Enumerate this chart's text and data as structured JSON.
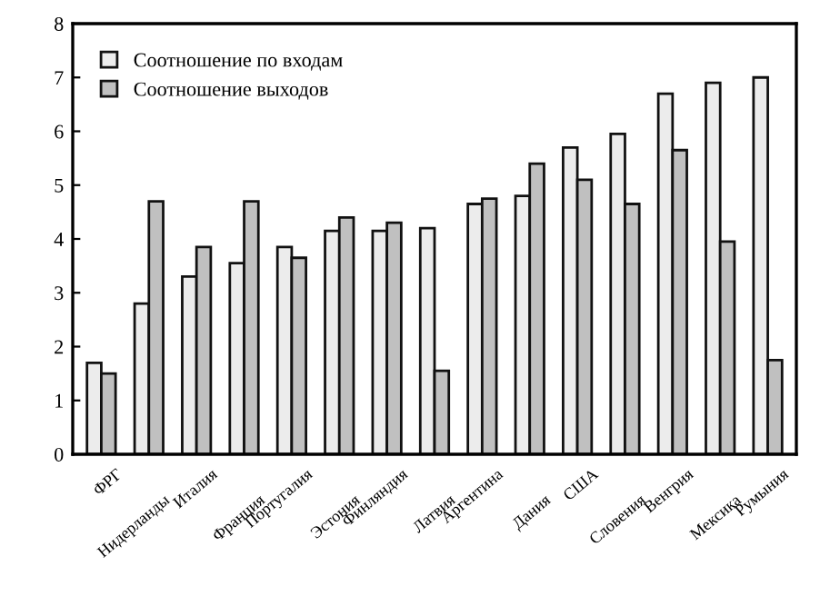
{
  "chart_data": {
    "type": "bar",
    "categories": [
      "ФРГ",
      "Нидерланды",
      "Италия",
      "Франция",
      "Португалия",
      "Эстония",
      "Финляндия",
      "Латвия",
      "Аргентина",
      "Дания",
      "США",
      "Словения",
      "Венгрия",
      "Мексика",
      "Румыния"
    ],
    "series": [
      {
        "name": "Соотношение по входам",
        "color": "#ececec",
        "values": [
          1.7,
          2.8,
          3.3,
          3.55,
          3.85,
          4.15,
          4.15,
          4.2,
          4.65,
          4.8,
          5.7,
          5.95,
          6.7,
          6.9,
          7.0
        ]
      },
      {
        "name": "Соотношение выходов",
        "color": "#c0c0c0",
        "values": [
          1.5,
          4.7,
          3.85,
          4.7,
          3.65,
          4.4,
          4.3,
          1.55,
          4.75,
          5.4,
          5.1,
          4.65,
          5.65,
          3.95,
          1.75
        ]
      }
    ],
    "ylim": [
      0,
      8
    ],
    "yticks": [
      0,
      1,
      2,
      3,
      4,
      5,
      6,
      7,
      8
    ],
    "grid": false,
    "legend": "top left"
  }
}
